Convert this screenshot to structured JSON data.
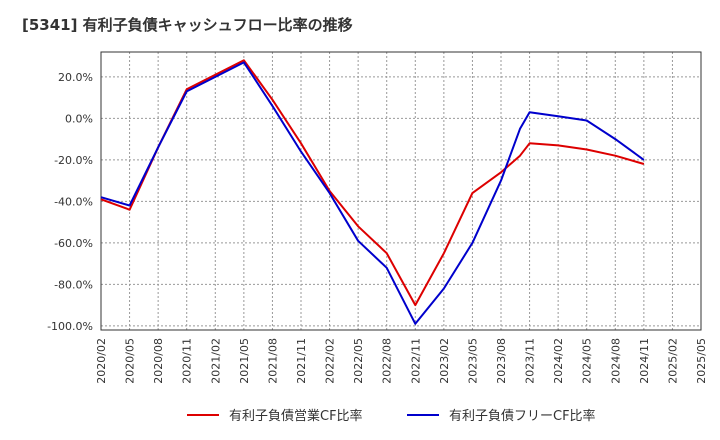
{
  "chart_data": {
    "type": "line",
    "title": "[5341]  有利子負債キャッシュフロー比率の推移",
    "xlabel": "",
    "ylabel": "",
    "x_ticks": [
      "2020/02",
      "2020/05",
      "2020/08",
      "2020/11",
      "2021/02",
      "2021/05",
      "2021/08",
      "2021/11",
      "2022/02",
      "2022/05",
      "2022/08",
      "2022/11",
      "2023/02",
      "2023/05",
      "2023/08",
      "2023/11",
      "2024/02",
      "2024/05",
      "2024/08",
      "2024/11",
      "2025/02",
      "2025/05"
    ],
    "y_ticks": [
      "20.0%",
      "0.0%",
      "-20.0%",
      "-40.0%",
      "-60.0%",
      "-80.0%",
      "-100.0%"
    ],
    "y_tick_values": [
      20,
      0,
      -20,
      -40,
      -60,
      -80,
      -100
    ],
    "ylim": [
      -102,
      32
    ],
    "grid": true,
    "legend_position": "bottom",
    "series": [
      {
        "name": "有利子負債営業CF比率",
        "color": "#dd0000",
        "points": [
          [
            "2020/02",
            -39
          ],
          [
            "2020/05",
            -44
          ],
          [
            "2020/08",
            -14
          ],
          [
            "2020/11",
            14
          ],
          [
            "2021/02",
            21
          ],
          [
            "2021/05",
            28
          ],
          [
            "2021/08",
            9
          ],
          [
            "2021/11",
            -12
          ],
          [
            "2022/02",
            -35
          ],
          [
            "2022/05",
            -52
          ],
          [
            "2022/08",
            -65
          ],
          [
            "2022/11",
            -90
          ],
          [
            "2023/02",
            -65
          ],
          [
            "2023/05",
            -36
          ],
          [
            "2023/08",
            -26
          ],
          [
            "2023/10",
            -18
          ],
          [
            "2023/11",
            -12
          ],
          [
            "2024/02",
            -13
          ],
          [
            "2024/05",
            -15
          ],
          [
            "2024/08",
            -18
          ],
          [
            "2024/11",
            -22
          ]
        ]
      },
      {
        "name": "有利子負債フリーCF比率",
        "color": "#0000cc",
        "points": [
          [
            "2020/02",
            -38
          ],
          [
            "2020/05",
            -42
          ],
          [
            "2020/08",
            -14
          ],
          [
            "2020/11",
            13
          ],
          [
            "2021/02",
            20
          ],
          [
            "2021/05",
            27
          ],
          [
            "2021/08",
            6
          ],
          [
            "2021/11",
            -16
          ],
          [
            "2022/02",
            -36
          ],
          [
            "2022/05",
            -59
          ],
          [
            "2022/08",
            -72
          ],
          [
            "2022/11",
            -99
          ],
          [
            "2023/02",
            -82
          ],
          [
            "2023/05",
            -60
          ],
          [
            "2023/08",
            -30
          ],
          [
            "2023/10",
            -5
          ],
          [
            "2023/11",
            3
          ],
          [
            "2024/02",
            1
          ],
          [
            "2024/05",
            -1
          ],
          [
            "2024/08",
            -10
          ],
          [
            "2024/11",
            -20
          ]
        ]
      }
    ]
  }
}
